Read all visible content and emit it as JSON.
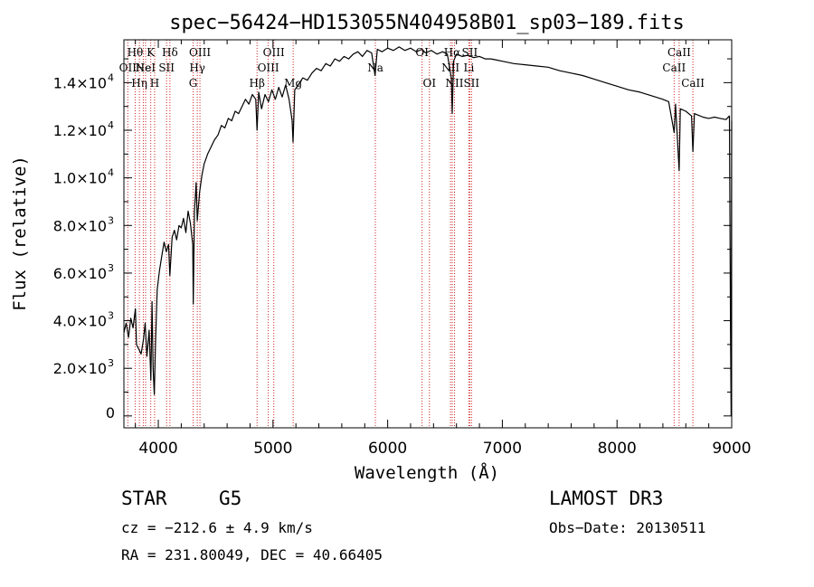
{
  "chart_data": {
    "type": "line",
    "title": "spec−56424−HD153055N404958B01_sp03−189.fits",
    "xlabel": "Wavelength (Å)",
    "ylabel": "Flux (relative)",
    "xlim": [
      3700,
      9000
    ],
    "ylim": [
      -500,
      15800
    ],
    "grid": false,
    "x_ticks": [
      {
        "value": 4000,
        "label": "4000"
      },
      {
        "value": 5000,
        "label": "5000"
      },
      {
        "value": 6000,
        "label": "6000"
      },
      {
        "value": 7000,
        "label": "7000"
      },
      {
        "value": 8000,
        "label": "8000"
      },
      {
        "value": 9000,
        "label": "9000"
      }
    ],
    "y_ticks": [
      {
        "value": 0,
        "label": "0",
        "exp": ""
      },
      {
        "value": 2000,
        "label": "2.0×10",
        "exp": "3"
      },
      {
        "value": 4000,
        "label": "4.0×10",
        "exp": "3"
      },
      {
        "value": 6000,
        "label": "6.0×10",
        "exp": "3"
      },
      {
        "value": 8000,
        "label": "8.0×10",
        "exp": "3"
      },
      {
        "value": 10000,
        "label": "1.0×10",
        "exp": "4"
      },
      {
        "value": 12000,
        "label": "1.2×10",
        "exp": "4"
      },
      {
        "value": 14000,
        "label": "1.4×10",
        "exp": "4"
      }
    ],
    "series": [
      {
        "name": "flux",
        "points": [
          [
            3700,
            3500
          ],
          [
            3720,
            3900
          ],
          [
            3740,
            3300
          ],
          [
            3760,
            4100
          ],
          [
            3780,
            3700
          ],
          [
            3800,
            4500
          ],
          [
            3810,
            3000
          ],
          [
            3830,
            2800
          ],
          [
            3850,
            2600
          ],
          [
            3870,
            3200
          ],
          [
            3885,
            3900
          ],
          [
            3900,
            2500
          ],
          [
            3920,
            3600
          ],
          [
            3935,
            1500
          ],
          [
            3945,
            4800
          ],
          [
            3955,
            2000
          ],
          [
            3965,
            900
          ],
          [
            3975,
            3000
          ],
          [
            3990,
            5300
          ],
          [
            4010,
            6100
          ],
          [
            4030,
            6700
          ],
          [
            4050,
            7300
          ],
          [
            4070,
            6900
          ],
          [
            4090,
            7200
          ],
          [
            4101,
            5900
          ],
          [
            4120,
            7500
          ],
          [
            4140,
            7800
          ],
          [
            4160,
            7400
          ],
          [
            4180,
            8000
          ],
          [
            4200,
            7900
          ],
          [
            4220,
            8300
          ],
          [
            4240,
            7700
          ],
          [
            4260,
            8600
          ],
          [
            4280,
            8100
          ],
          [
            4300,
            7200
          ],
          [
            4305,
            4700
          ],
          [
            4315,
            8600
          ],
          [
            4330,
            9800
          ],
          [
            4340,
            8200
          ],
          [
            4360,
            9400
          ],
          [
            4380,
            10100
          ],
          [
            4400,
            10600
          ],
          [
            4430,
            11000
          ],
          [
            4460,
            11300
          ],
          [
            4490,
            11600
          ],
          [
            4520,
            11800
          ],
          [
            4550,
            12200
          ],
          [
            4580,
            12100
          ],
          [
            4610,
            12500
          ],
          [
            4640,
            12400
          ],
          [
            4670,
            12800
          ],
          [
            4700,
            12700
          ],
          [
            4730,
            13000
          ],
          [
            4760,
            13300
          ],
          [
            4790,
            13100
          ],
          [
            4820,
            13500
          ],
          [
            4850,
            13300
          ],
          [
            4861,
            12000
          ],
          [
            4875,
            13600
          ],
          [
            4900,
            12900
          ],
          [
            4930,
            13500
          ],
          [
            4960,
            13200
          ],
          [
            4990,
            13700
          ],
          [
            5020,
            13300
          ],
          [
            5050,
            13800
          ],
          [
            5080,
            13400
          ],
          [
            5110,
            13900
          ],
          [
            5140,
            13300
          ],
          [
            5167,
            12400
          ],
          [
            5175,
            11500
          ],
          [
            5190,
            13700
          ],
          [
            5220,
            13900
          ],
          [
            5260,
            14200
          ],
          [
            5300,
            14100
          ],
          [
            5340,
            14400
          ],
          [
            5380,
            14600
          ],
          [
            5420,
            14500
          ],
          [
            5460,
            14800
          ],
          [
            5500,
            14700
          ],
          [
            5540,
            15000
          ],
          [
            5580,
            14900
          ],
          [
            5620,
            15100
          ],
          [
            5660,
            15000
          ],
          [
            5700,
            15200
          ],
          [
            5740,
            15300
          ],
          [
            5780,
            15100
          ],
          [
            5820,
            15350
          ],
          [
            5860,
            15250
          ],
          [
            5890,
            14300
          ],
          [
            5910,
            15400
          ],
          [
            5950,
            15300
          ],
          [
            6000,
            15450
          ],
          [
            6050,
            15350
          ],
          [
            6100,
            15500
          ],
          [
            6150,
            15350
          ],
          [
            6200,
            15450
          ],
          [
            6250,
            15300
          ],
          [
            6300,
            15400
          ],
          [
            6330,
            15250
          ],
          [
            6380,
            15350
          ],
          [
            6430,
            15200
          ],
          [
            6480,
            15300
          ],
          [
            6520,
            15200
          ],
          [
            6555,
            14200
          ],
          [
            6563,
            12700
          ],
          [
            6575,
            14900
          ],
          [
            6600,
            15200
          ],
          [
            6650,
            15100
          ],
          [
            6700,
            15150
          ],
          [
            6750,
            15050
          ],
          [
            6800,
            15100
          ],
          [
            6850,
            15000
          ],
          [
            6900,
            15000
          ],
          [
            6950,
            14950
          ],
          [
            7000,
            14900
          ],
          [
            7100,
            14800
          ],
          [
            7200,
            14750
          ],
          [
            7300,
            14700
          ],
          [
            7400,
            14650
          ],
          [
            7500,
            14500
          ],
          [
            7600,
            14400
          ],
          [
            7700,
            14300
          ],
          [
            7800,
            14150
          ],
          [
            7900,
            14000
          ],
          [
            8000,
            13850
          ],
          [
            8100,
            13700
          ],
          [
            8200,
            13600
          ],
          [
            8300,
            13450
          ],
          [
            8400,
            13300
          ],
          [
            8450,
            13200
          ],
          [
            8498,
            11900
          ],
          [
            8510,
            13100
          ],
          [
            8542,
            10300
          ],
          [
            8552,
            12900
          ],
          [
            8600,
            12800
          ],
          [
            8650,
            12600
          ],
          [
            8662,
            11100
          ],
          [
            8675,
            12700
          ],
          [
            8700,
            12650
          ],
          [
            8750,
            12550
          ],
          [
            8800,
            12500
          ],
          [
            8850,
            12550
          ],
          [
            8900,
            12500
          ],
          [
            8950,
            12450
          ],
          [
            8980,
            12600
          ],
          [
            8990,
            3600
          ],
          [
            8995,
            0
          ],
          [
            9000,
            12400
          ]
        ]
      }
    ],
    "lines": [
      {
        "wave": 3734,
        "label": "OII",
        "row": 2
      },
      {
        "wave": 3798,
        "label": "Hθ",
        "row": 1
      },
      {
        "wave": 3835,
        "label": "Hη",
        "row": 3
      },
      {
        "wave": 3869,
        "label": "Ne",
        "row": 2
      },
      {
        "wave": 3889,
        "label": "HeI",
        "row": 2
      },
      {
        "wave": 3934,
        "label": "K",
        "row": 1
      },
      {
        "wave": 3968,
        "label": "H",
        "row": 3
      },
      {
        "wave": 4072,
        "label": "SII",
        "row": 2
      },
      {
        "wave": 4101,
        "label": "Hδ",
        "row": 1
      },
      {
        "wave": 4304,
        "label": "G",
        "row": 3
      },
      {
        "wave": 4340,
        "label": "Hγ",
        "row": 2
      },
      {
        "wave": 4363,
        "label": "OIII",
        "row": 1
      },
      {
        "wave": 4861,
        "label": "Hβ",
        "row": 3
      },
      {
        "wave": 4959,
        "label": "OIII",
        "row": 2
      },
      {
        "wave": 5007,
        "label": "OIII",
        "row": 1
      },
      {
        "wave": 5176,
        "label": "Mg",
        "row": 3
      },
      {
        "wave": 5893,
        "label": "Na",
        "row": 2
      },
      {
        "wave": 6300,
        "label": "OI",
        "row": 1
      },
      {
        "wave": 6364,
        "label": "OI",
        "row": 3
      },
      {
        "wave": 6548,
        "label": "NII",
        "row": 2
      },
      {
        "wave": 6563,
        "label": "Hα",
        "row": 1
      },
      {
        "wave": 6583,
        "label": "NII",
        "row": 3
      },
      {
        "wave": 6708,
        "label": "Li",
        "row": 2
      },
      {
        "wave": 6716,
        "label": "SII",
        "row": 1
      },
      {
        "wave": 6731,
        "label": "SII",
        "row": 3
      },
      {
        "wave": 8498,
        "label": "CaII",
        "row": 2
      },
      {
        "wave": 8542,
        "label": "CaII",
        "row": 1
      },
      {
        "wave": 8662,
        "label": "CaII",
        "row": 3
      }
    ]
  },
  "info": {
    "object_class": "STAR",
    "subclass": "G5",
    "survey": "LAMOST DR3",
    "cz": "cz = −212.6 ± 4.9 km/s",
    "obs_date": "Obs−Date: 20130511",
    "radec": "RA = 231.80049, DEC =  40.66405"
  },
  "colors": {
    "line_marker": "#cc2222",
    "spectrum": "#000000",
    "axis": "#000000"
  }
}
